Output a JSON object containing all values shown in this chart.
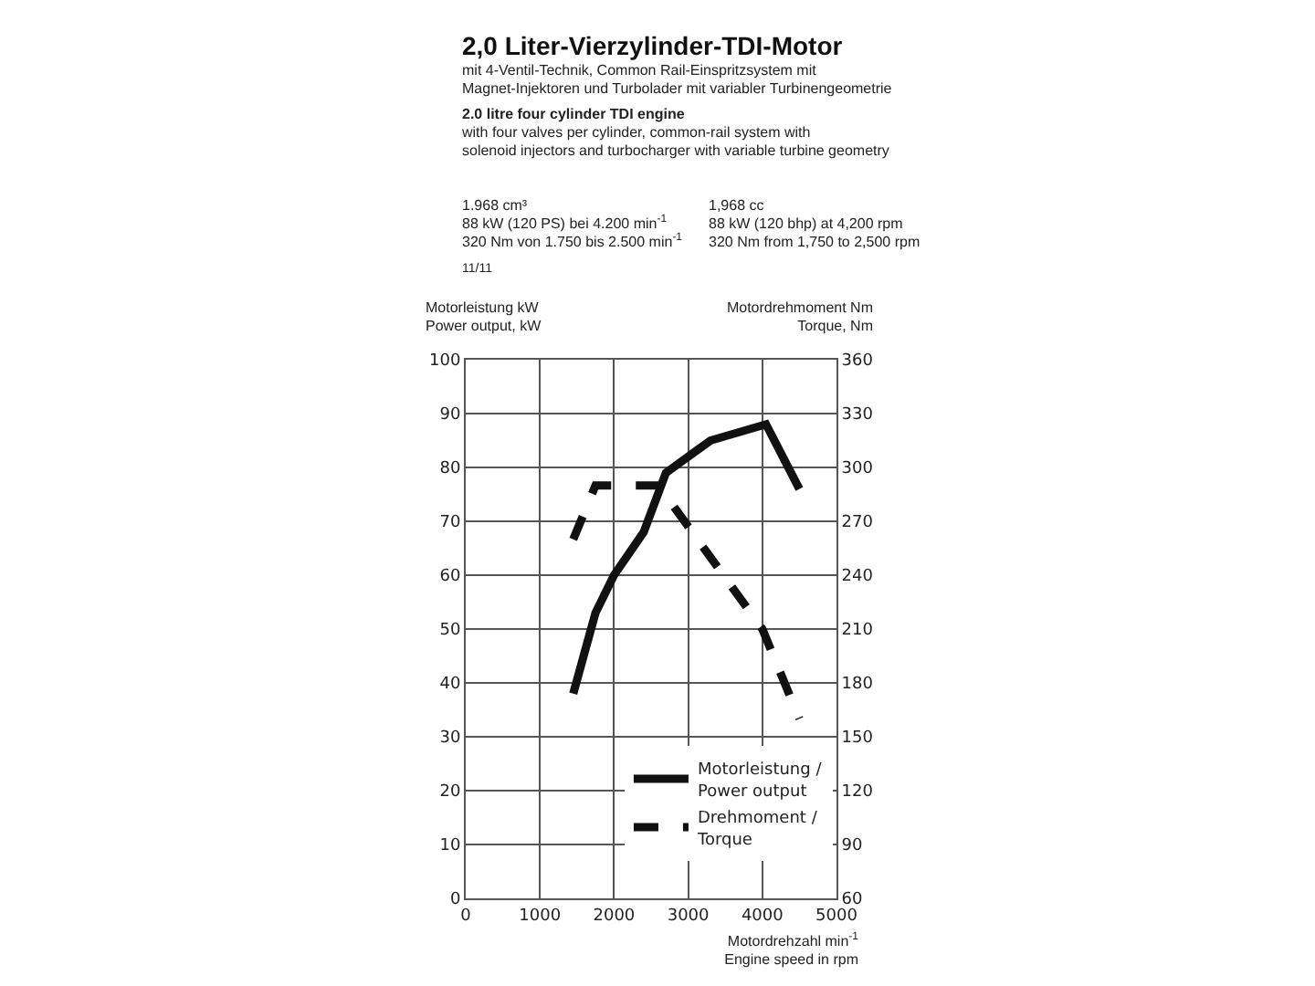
{
  "chart_data": {
    "type": "line",
    "title": "2,0 Liter-Vierzylinder-TDI-Motor",
    "subtitle": "mit 4-Ventil-Technik, Common Rail-Einspritzsystem mit\nMagnet-Injektoren und Turbolader mit variabler Turbinengeometrie",
    "annotations": [
      "2.0 litre four cylinder TDI engine",
      "with four valves per cylinder, common-rail system with\nsolenoid injectors and turbocharger with variable turbine geometry",
      "1.968 cm³\n88 kW (120 PS) bei 4.200 min$^{-1}$\n320 Nm von 1.750 bis 2.500 min$^{-1}$",
      "1,968 cc\n88 kW (120 bhp) at 4,200 rpm\n320 Nm from 1,750 to 2,500 rpm",
      "11/11"
    ],
    "xlabel": "Motordrehzahl min$^{-1}$\nEngine speed in rpm",
    "ylabel": "Motorleistung kW\nPower output, kW",
    "y2label": "Motordrehmoment Nm\nTorque, Nm",
    "xlim": [
      0,
      5000
    ],
    "xticks": [
      0,
      1000,
      2000,
      3000,
      4000,
      5000
    ],
    "ylim": [
      0,
      100
    ],
    "yticks": [
      0,
      10,
      20,
      30,
      40,
      50,
      60,
      70,
      80,
      90,
      100
    ],
    "y2lim": [
      60,
      360
    ],
    "y2ticks": [
      60,
      90,
      120,
      150,
      180,
      210,
      240,
      270,
      300,
      330,
      360
    ],
    "grid": true,
    "legend": "bottom right",
    "marker": "none",
    "series": [
      {
        "name": "Motorleistung /\nPower output",
        "color": "#111111",
        "line_style": "solid",
        "x": [
          1450,
          1750,
          2000,
          2400,
          2700,
          3300,
          4050,
          4500
        ],
        "values": [
          38,
          53,
          60,
          68,
          79,
          85,
          88,
          76
        ]
      },
      {
        "name": "Drehmoment /\nTorque",
        "color": "#111111",
        "line_style": "dashed",
        "axis": "y2",
        "x": [
          1450,
          1750,
          2600,
          4000,
          4500
        ],
        "values": [
          260,
          290,
          290,
          210,
          160
        ]
      }
    ]
  }
}
